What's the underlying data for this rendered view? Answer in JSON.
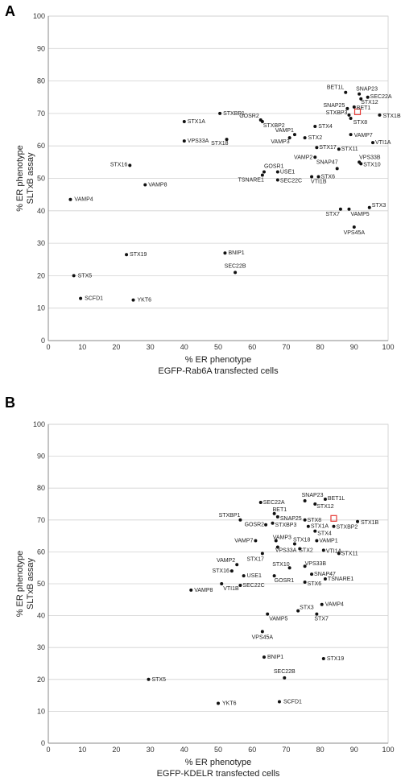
{
  "chart_data": [
    {
      "type": "scatter",
      "panel_label": "A",
      "xlabel": "% ER phenotype",
      "xlabel2": "EGFP-Rab6A transfected cells",
      "ylabel": "% ER phenotype",
      "ylabel2": "SLTxB assay",
      "xlim": [
        0,
        100
      ],
      "ylim": [
        0,
        100
      ],
      "xticks": [
        "0",
        "10",
        "20",
        "30",
        "40",
        "50",
        "60",
        "70",
        "80",
        "90",
        "100"
      ],
      "yticks": [
        "0",
        "10",
        "20",
        "30",
        "40",
        "50",
        "60",
        "70",
        "80",
        "90",
        "100"
      ],
      "grid": true,
      "highlight_color": "#e53935",
      "points": [
        {
          "label": "BET1L",
          "x": 87.5,
          "y": 76.5,
          "anchor": "end",
          "dx": -2,
          "dy": -4
        },
        {
          "label": "SNAP23",
          "x": 91.5,
          "y": 76,
          "anchor": "start",
          "dx": -4,
          "dy": -4
        },
        {
          "label": "SEC22A",
          "x": 94,
          "y": 75,
          "anchor": "start",
          "dx": 3,
          "dy": 1
        },
        {
          "label": "STX12",
          "x": 92,
          "y": 74.5,
          "anchor": "start",
          "dx": 0,
          "dy": 6
        },
        {
          "label": "SNAP25",
          "x": 88,
          "y": 71.5,
          "anchor": "end",
          "dx": -3,
          "dy": -2
        },
        {
          "label": "BET1",
          "x": 90,
          "y": 72,
          "anchor": "start",
          "dx": 3,
          "dy": 3
        },
        {
          "label": "STXBP3",
          "x": 88.5,
          "y": 69.5,
          "anchor": "end",
          "dx": -2,
          "dy": -1
        },
        {
          "label": "STX8",
          "x": 89,
          "y": 68.5,
          "anchor": "start",
          "dx": 3,
          "dy": 7
        },
        {
          "label": "STX1B",
          "x": 97.5,
          "y": 69.5,
          "anchor": "start",
          "dx": 4,
          "dy": 3
        },
        {
          "label": "STXBP1",
          "x": 50.5,
          "y": 70,
          "anchor": "start",
          "dx": 4,
          "dy": 2
        },
        {
          "label": "STX1A",
          "x": 40,
          "y": 67.5,
          "anchor": "start",
          "dx": 4,
          "dy": 2
        },
        {
          "label": "GOSR2",
          "x": 62.5,
          "y": 68,
          "anchor": "end",
          "dx": -2,
          "dy": -3
        },
        {
          "label": "STXBP2",
          "x": 63,
          "y": 67.5,
          "anchor": "start",
          "dx": 1,
          "dy": 7
        },
        {
          "label": "STX4",
          "x": 78.5,
          "y": 66,
          "anchor": "start",
          "dx": 4,
          "dy": 2
        },
        {
          "label": "VAMP1",
          "x": 72.5,
          "y": 63.5,
          "anchor": "end",
          "dx": -1,
          "dy": -3
        },
        {
          "label": "STX2",
          "x": 75.5,
          "y": 62.5,
          "anchor": "start",
          "dx": 4,
          "dy": 2
        },
        {
          "label": "VAMP3",
          "x": 71,
          "y": 62.5,
          "anchor": "end",
          "dx": 0,
          "dy": 7
        },
        {
          "label": "VAMP7",
          "x": 89,
          "y": 63.5,
          "anchor": "start",
          "dx": 4,
          "dy": 3
        },
        {
          "label": "VPS33A",
          "x": 40,
          "y": 61.5,
          "anchor": "start",
          "dx": 4,
          "dy": 2
        },
        {
          "label": "STX18",
          "x": 52.5,
          "y": 62,
          "anchor": "end",
          "dx": 2,
          "dy": 7
        },
        {
          "label": "STX17",
          "x": 79,
          "y": 59.5,
          "anchor": "start",
          "dx": 3,
          "dy": 2
        },
        {
          "label": "STX11",
          "x": 85.5,
          "y": 59,
          "anchor": "start",
          "dx": 3,
          "dy": 2
        },
        {
          "label": "VTI1A",
          "x": 95.5,
          "y": 61,
          "anchor": "start",
          "dx": 3,
          "dy": 2
        },
        {
          "label": "VAMP2",
          "x": 78.5,
          "y": 56.5,
          "anchor": "end",
          "dx": -3,
          "dy": 2
        },
        {
          "label": "SNAP47",
          "x": 85,
          "y": 53,
          "anchor": "end",
          "dx": 1,
          "dy": -6
        },
        {
          "label": "VPS33B",
          "x": 91.5,
          "y": 55,
          "anchor": "start",
          "dx": 0,
          "dy": -4
        },
        {
          "label": "STX10",
          "x": 92,
          "y": 54.5,
          "anchor": "start",
          "dx": 3,
          "dy": 3
        },
        {
          "label": "STX16",
          "x": 24,
          "y": 54,
          "anchor": "end",
          "dx": -3,
          "dy": 1
        },
        {
          "label": "GOSR1",
          "x": 63.5,
          "y": 52,
          "anchor": "start",
          "dx": 0,
          "dy": -5
        },
        {
          "label": "USE1",
          "x": 67.5,
          "y": 52,
          "anchor": "start",
          "dx": 3,
          "dy": 2
        },
        {
          "label": "TSNARE1",
          "x": 63,
          "y": 51,
          "anchor": "end",
          "dx": 2,
          "dy": 8
        },
        {
          "label": "SEC22C",
          "x": 67.5,
          "y": 49.5,
          "anchor": "start",
          "dx": 3,
          "dy": 3
        },
        {
          "label": "STX6",
          "x": 79.5,
          "y": 50.5,
          "anchor": "start",
          "dx": 3,
          "dy": 2
        },
        {
          "label": "VTI1B",
          "x": 77.5,
          "y": 50.5,
          "anchor": "start",
          "dx": -1,
          "dy": 8
        },
        {
          "label": "VAMP8",
          "x": 28.5,
          "y": 48,
          "anchor": "start",
          "dx": 4,
          "dy": 2
        },
        {
          "label": "VAMP4",
          "x": 6.5,
          "y": 43.5,
          "anchor": "start",
          "dx": 5,
          "dy": 2
        },
        {
          "label": "STX3",
          "x": 94.5,
          "y": 41,
          "anchor": "start",
          "dx": 3,
          "dy": -1
        },
        {
          "label": "STX7",
          "x": 86,
          "y": 40.5,
          "anchor": "end",
          "dx": -1,
          "dy": 8
        },
        {
          "label": "VAMP5",
          "x": 88.5,
          "y": 40.5,
          "anchor": "start",
          "dx": 2,
          "dy": 8
        },
        {
          "label": "VPS45A",
          "x": 90,
          "y": 35,
          "anchor": "middle",
          "dx": 0,
          "dy": 9
        },
        {
          "label": "STX19",
          "x": 23,
          "y": 26.5,
          "anchor": "start",
          "dx": 4,
          "dy": 2
        },
        {
          "label": "BNIP1",
          "x": 52,
          "y": 27,
          "anchor": "start",
          "dx": 4,
          "dy": 2
        },
        {
          "label": "SEC22B",
          "x": 55,
          "y": 21,
          "anchor": "middle",
          "dx": 0,
          "dy": -6
        },
        {
          "label": "STX5",
          "x": 7.5,
          "y": 20,
          "anchor": "start",
          "dx": 5,
          "dy": 2
        },
        {
          "label": "SCFD1",
          "x": 9.5,
          "y": 13,
          "anchor": "start",
          "dx": 5,
          "dy": 2
        },
        {
          "label": "YKT6",
          "x": 25,
          "y": 12.5,
          "anchor": "start",
          "dx": 5,
          "dy": 2
        }
      ],
      "highlight": {
        "x": 91,
        "y": 70.5
      }
    },
    {
      "type": "scatter",
      "panel_label": "B",
      "xlabel": "% ER phenotype",
      "xlabel2": "EGFP-KDELR transfected cells",
      "ylabel": "% ER phenotype",
      "ylabel2": "SLTxB assay",
      "xlim": [
        0,
        100
      ],
      "ylim": [
        0,
        100
      ],
      "xticks": [
        "0",
        "10",
        "20",
        "30",
        "40",
        "50",
        "60",
        "70",
        "80",
        "90",
        "100"
      ],
      "yticks": [
        "0",
        "10",
        "20",
        "30",
        "40",
        "50",
        "60",
        "70",
        "80",
        "90",
        "100"
      ],
      "grid": true,
      "highlight_color": "#e53935",
      "points": [
        {
          "label": "SEC22A",
          "x": 62.5,
          "y": 75.5,
          "anchor": "start",
          "dx": 3,
          "dy": 2
        },
        {
          "label": "SNAP23",
          "x": 75.5,
          "y": 76,
          "anchor": "start",
          "dx": -4,
          "dy": -5
        },
        {
          "label": "BET1L",
          "x": 81.5,
          "y": 76.5,
          "anchor": "start",
          "dx": 3,
          "dy": 1
        },
        {
          "label": "STX12",
          "x": 78.5,
          "y": 75,
          "anchor": "start",
          "dx": 2,
          "dy": 5
        },
        {
          "label": "BET1",
          "x": 66.5,
          "y": 72,
          "anchor": "start",
          "dx": -2,
          "dy": -3
        },
        {
          "label": "STXBP1",
          "x": 56.5,
          "y": 70,
          "anchor": "end",
          "dx": 0,
          "dy": -4
        },
        {
          "label": "SNAP25",
          "x": 67.5,
          "y": 71,
          "anchor": "start",
          "dx": 3,
          "dy": 4
        },
        {
          "label": "STX8",
          "x": 75.5,
          "y": 70,
          "anchor": "start",
          "dx": 3,
          "dy": 2
        },
        {
          "label": "STX1A",
          "x": 76.5,
          "y": 68,
          "anchor": "start",
          "dx": 3,
          "dy": 2
        },
        {
          "label": "STXBP2",
          "x": 84,
          "y": 68,
          "anchor": "start",
          "dx": 3,
          "dy": 3
        },
        {
          "label": "STX1B",
          "x": 91,
          "y": 69.5,
          "anchor": "start",
          "dx": 4,
          "dy": 3
        },
        {
          "label": "GOSR2",
          "x": 64,
          "y": 68.5,
          "anchor": "end",
          "dx": -2,
          "dy": 2
        },
        {
          "label": "STXBP3",
          "x": 66,
          "y": 69,
          "anchor": "start",
          "dx": 3,
          "dy": 4
        },
        {
          "label": "STX4",
          "x": 78.5,
          "y": 66.5,
          "anchor": "start",
          "dx": 3,
          "dy": 5
        },
        {
          "label": "VAMP7",
          "x": 61,
          "y": 63.5,
          "anchor": "end",
          "dx": -3,
          "dy": 2
        },
        {
          "label": "VAMP3",
          "x": 67,
          "y": 63.5,
          "anchor": "start",
          "dx": -4,
          "dy": -2
        },
        {
          "label": "STX18",
          "x": 72.5,
          "y": 62.5,
          "anchor": "start",
          "dx": -2,
          "dy": -3
        },
        {
          "label": "VAMP1",
          "x": 79,
          "y": 63.5,
          "anchor": "start",
          "dx": 3,
          "dy": 2
        },
        {
          "label": "STX2",
          "x": 74,
          "y": 61,
          "anchor": "start",
          "dx": -1,
          "dy": 4
        },
        {
          "label": "VTI1A",
          "x": 81,
          "y": 60.5,
          "anchor": "start",
          "dx": 3,
          "dy": 3
        },
        {
          "label": "VPS33A",
          "x": 67.5,
          "y": 61.5,
          "anchor": "start",
          "dx": -3,
          "dy": 6
        },
        {
          "label": "STX11",
          "x": 85.5,
          "y": 59.5,
          "anchor": "start",
          "dx": 3,
          "dy": 2
        },
        {
          "label": "STX17",
          "x": 63,
          "y": 59.5,
          "anchor": "end",
          "dx": 2,
          "dy": 9
        },
        {
          "label": "VAMP2",
          "x": 55.5,
          "y": 56,
          "anchor": "end",
          "dx": -2,
          "dy": -3
        },
        {
          "label": "STX10",
          "x": 71,
          "y": 55,
          "anchor": "end",
          "dx": 0,
          "dy": -2
        },
        {
          "label": "VPS33B",
          "x": 75.5,
          "y": 55.5,
          "anchor": "start",
          "dx": 0,
          "dy": -1
        },
        {
          "label": "STX16",
          "x": 54,
          "y": 54,
          "anchor": "end",
          "dx": -3,
          "dy": 2
        },
        {
          "label": "SNAP47",
          "x": 77.5,
          "y": 53,
          "anchor": "start",
          "dx": 3,
          "dy": 2
        },
        {
          "label": "USE1",
          "x": 57.5,
          "y": 52.5,
          "anchor": "start",
          "dx": 4,
          "dy": 2
        },
        {
          "label": "GOSR1",
          "x": 66.5,
          "y": 52.5,
          "anchor": "start",
          "dx": 0,
          "dy": 8
        },
        {
          "label": "TSNARE1",
          "x": 81.5,
          "y": 51.5,
          "anchor": "start",
          "dx": 3,
          "dy": 2
        },
        {
          "label": "STX6",
          "x": 75.5,
          "y": 50.5,
          "anchor": "start",
          "dx": 3,
          "dy": 4
        },
        {
          "label": "VTI1B",
          "x": 51,
          "y": 50,
          "anchor": "start",
          "dx": 2,
          "dy": 8
        },
        {
          "label": "SEC22C",
          "x": 56.5,
          "y": 49.5,
          "anchor": "start",
          "dx": 3,
          "dy": 2
        },
        {
          "label": "VAMP8",
          "x": 42,
          "y": 48,
          "anchor": "start",
          "dx": 4,
          "dy": 2
        },
        {
          "label": "VAMP4",
          "x": 80.5,
          "y": 43.5,
          "anchor": "start",
          "dx": 4,
          "dy": 2
        },
        {
          "label": "STX3",
          "x": 73.5,
          "y": 41.5,
          "anchor": "start",
          "dx": 2,
          "dy": -2
        },
        {
          "label": "STX7",
          "x": 79,
          "y": 40.5,
          "anchor": "start",
          "dx": -3,
          "dy": 8
        },
        {
          "label": "VAMP5",
          "x": 64.5,
          "y": 40.5,
          "anchor": "start",
          "dx": 2,
          "dy": 8
        },
        {
          "label": "VPS45A",
          "x": 63,
          "y": 35,
          "anchor": "middle",
          "dx": 0,
          "dy": 9
        },
        {
          "label": "BNIP1",
          "x": 63.5,
          "y": 27,
          "anchor": "start",
          "dx": 4,
          "dy": 2
        },
        {
          "label": "STX19",
          "x": 81,
          "y": 26.5,
          "anchor": "start",
          "dx": 4,
          "dy": 2
        },
        {
          "label": "SEC22B",
          "x": 69.5,
          "y": 20.5,
          "anchor": "middle",
          "dx": 0,
          "dy": -6
        },
        {
          "label": "STX5",
          "x": 29.5,
          "y": 20,
          "anchor": "start",
          "dx": 4,
          "dy": 2
        },
        {
          "label": "SCFD1",
          "x": 68,
          "y": 13,
          "anchor": "start",
          "dx": 5,
          "dy": 2
        },
        {
          "label": "YKT6",
          "x": 50,
          "y": 12.5,
          "anchor": "start",
          "dx": 5,
          "dy": 2
        }
      ],
      "highlight": {
        "x": 84,
        "y": 70.5
      }
    }
  ]
}
